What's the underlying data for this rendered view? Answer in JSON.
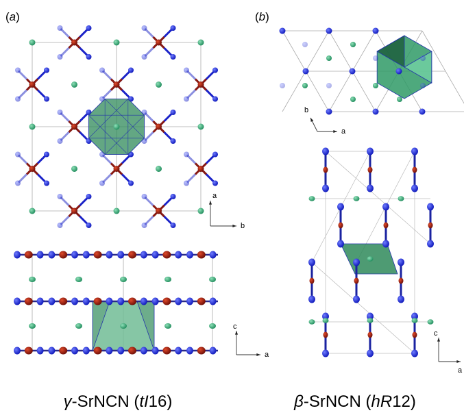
{
  "panels": [
    {
      "label": [
        "(",
        "a",
        ")"
      ],
      "axes": [
        [
          "a",
          "b"
        ],
        [
          "c",
          "a"
        ]
      ],
      "caption": [
        "γ",
        "-SrNCN (",
        "tI",
        "16)"
      ]
    },
    {
      "label": [
        "(",
        "b",
        ")"
      ],
      "axes": [
        [
          "b",
          "a"
        ],
        [
          "c",
          "a"
        ]
      ],
      "caption": [
        "β",
        "-SrNCN (",
        "hR",
        "12)"
      ]
    }
  ]
}
